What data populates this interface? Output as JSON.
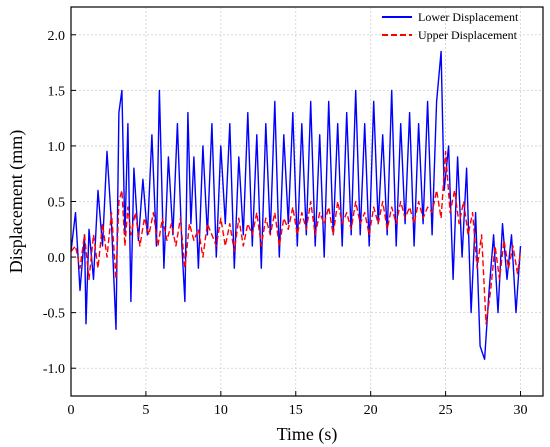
{
  "chart_data": {
    "type": "line",
    "title": "",
    "xlabel": "Time (s)",
    "ylabel": "Displacement (mm)",
    "xlim": [
      0,
      31.5
    ],
    "ylim": [
      -1.25,
      2.25
    ],
    "xticks": [
      0,
      5,
      10,
      15,
      20,
      25,
      30
    ],
    "yticks": [
      -1.0,
      -0.5,
      0.0,
      0.5,
      1.0,
      1.5,
      2.0
    ],
    "xtick_labels": [
      "0",
      "5",
      "10",
      "15",
      "20",
      "25",
      "30"
    ],
    "ytick_labels": [
      "-1.0",
      "-0.5",
      "0.0",
      "0.5",
      "1.0",
      "1.5",
      "2.0"
    ],
    "grid": true,
    "legend_position": "top-right",
    "series": [
      {
        "name": "Lower Displacement",
        "color": "#0000ff",
        "style": "solid",
        "x": [
          0,
          0.3,
          0.6,
          0.9,
          1.0,
          1.2,
          1.5,
          1.8,
          2.1,
          2.4,
          2.7,
          3.0,
          3.2,
          3.4,
          3.6,
          3.8,
          4.0,
          4.2,
          4.5,
          4.8,
          5.1,
          5.4,
          5.7,
          5.9,
          6.2,
          6.5,
          6.8,
          7.1,
          7.4,
          7.6,
          7.8,
          8.0,
          8.2,
          8.5,
          8.8,
          9.1,
          9.4,
          9.7,
          10.0,
          10.3,
          10.6,
          10.9,
          11.2,
          11.5,
          11.8,
          12.1,
          12.4,
          12.7,
          13.0,
          13.3,
          13.6,
          13.9,
          14.2,
          14.5,
          14.8,
          15.1,
          15.4,
          15.7,
          16.0,
          16.3,
          16.6,
          16.9,
          17.2,
          17.5,
          17.8,
          18.1,
          18.4,
          18.7,
          19.0,
          19.3,
          19.6,
          19.9,
          20.2,
          20.5,
          20.8,
          21.1,
          21.4,
          21.7,
          22.0,
          22.3,
          22.6,
          22.9,
          23.2,
          23.5,
          23.8,
          24.1,
          24.4,
          24.7,
          24.9,
          25.2,
          25.5,
          25.8,
          26.1,
          26.4,
          26.7,
          27.0,
          27.3,
          27.6,
          27.9,
          28.2,
          28.5,
          28.8,
          29.1,
          29.4,
          29.7,
          30.0
        ],
        "values": [
          0.05,
          0.4,
          -0.3,
          0.2,
          -0.6,
          0.25,
          -0.2,
          0.6,
          0.1,
          0.95,
          0.3,
          -0.65,
          1.3,
          1.5,
          0.2,
          1.2,
          -0.4,
          0.8,
          0.15,
          0.7,
          0.2,
          1.1,
          0.1,
          1.5,
          -0.1,
          0.9,
          0.2,
          1.2,
          0.1,
          -0.4,
          1.3,
          0.3,
          0.9,
          -0.1,
          1.0,
          0.2,
          1.2,
          0.0,
          1.0,
          0.3,
          1.2,
          -0.1,
          0.9,
          0.2,
          1.3,
          0.1,
          1.1,
          -0.1,
          1.2,
          0.2,
          1.4,
          0.0,
          1.1,
          0.3,
          1.3,
          0.1,
          1.2,
          0.2,
          1.4,
          0.1,
          1.1,
          0.0,
          1.4,
          0.2,
          1.2,
          0.1,
          1.3,
          0.2,
          1.5,
          0.2,
          1.2,
          0.1,
          1.4,
          0.3,
          1.1,
          0.2,
          1.5,
          0.1,
          1.2,
          0.3,
          1.3,
          0.1,
          1.2,
          0.3,
          1.4,
          0.2,
          1.4,
          1.85,
          0.6,
          1.0,
          -0.2,
          0.9,
          0.0,
          0.8,
          -0.5,
          0.4,
          -0.8,
          -0.92,
          -0.3,
          0.2,
          -0.5,
          0.3,
          -0.2,
          0.2,
          -0.5,
          0.1
        ]
      },
      {
        "name": "Upper Displacement",
        "color": "#ff0000",
        "style": "dashed",
        "x": [
          0,
          0.3,
          0.6,
          0.9,
          1.2,
          1.5,
          1.8,
          2.1,
          2.4,
          2.7,
          3.0,
          3.2,
          3.4,
          3.6,
          3.8,
          4.0,
          4.3,
          4.6,
          4.9,
          5.2,
          5.5,
          5.8,
          6.1,
          6.4,
          6.7,
          7.0,
          7.3,
          7.6,
          7.9,
          8.2,
          8.5,
          8.8,
          9.1,
          9.4,
          9.7,
          10.0,
          10.3,
          10.6,
          10.9,
          11.2,
          11.5,
          11.8,
          12.1,
          12.4,
          12.7,
          13.0,
          13.3,
          13.6,
          13.9,
          14.2,
          14.5,
          14.8,
          15.1,
          15.4,
          15.7,
          16.0,
          16.3,
          16.6,
          16.9,
          17.2,
          17.5,
          17.8,
          18.1,
          18.4,
          18.7,
          19.0,
          19.3,
          19.6,
          19.9,
          20.2,
          20.5,
          20.8,
          21.1,
          21.4,
          21.7,
          22.0,
          22.3,
          22.6,
          22.9,
          23.2,
          23.5,
          23.8,
          24.1,
          24.4,
          24.7,
          25.0,
          25.3,
          25.6,
          25.9,
          26.2,
          26.5,
          26.8,
          27.1,
          27.4,
          27.7,
          28.0,
          28.3,
          28.6,
          28.9,
          29.2,
          29.5,
          29.8,
          30.0
        ],
        "values": [
          0.05,
          0.1,
          -0.1,
          0.2,
          -0.2,
          0.2,
          -0.1,
          0.3,
          0.0,
          0.4,
          -0.2,
          0.5,
          0.6,
          0.1,
          0.45,
          0.2,
          0.4,
          0.1,
          0.35,
          0.2,
          0.4,
          0.1,
          0.35,
          0.15,
          0.3,
          0.1,
          0.35,
          -0.1,
          0.3,
          0.15,
          0.25,
          0.0,
          0.3,
          0.2,
          0.1,
          0.35,
          0.1,
          0.3,
          0.05,
          0.35,
          0.1,
          0.3,
          0.2,
          0.4,
          0.1,
          0.35,
          0.2,
          0.4,
          0.1,
          0.35,
          0.25,
          0.45,
          0.2,
          0.4,
          0.25,
          0.5,
          0.2,
          0.4,
          0.3,
          0.45,
          0.2,
          0.5,
          0.3,
          0.4,
          0.25,
          0.5,
          0.3,
          0.4,
          0.2,
          0.45,
          0.3,
          0.5,
          0.25,
          0.45,
          0.3,
          0.5,
          0.35,
          0.45,
          0.3,
          0.5,
          0.35,
          0.45,
          0.4,
          0.6,
          0.35,
          0.95,
          0.4,
          0.6,
          0.3,
          0.5,
          0.2,
          0.4,
          -0.1,
          0.2,
          -0.6,
          -0.3,
          0.1,
          -0.2,
          0.15,
          -0.1,
          0.1,
          -0.15,
          0.05
        ]
      }
    ]
  }
}
